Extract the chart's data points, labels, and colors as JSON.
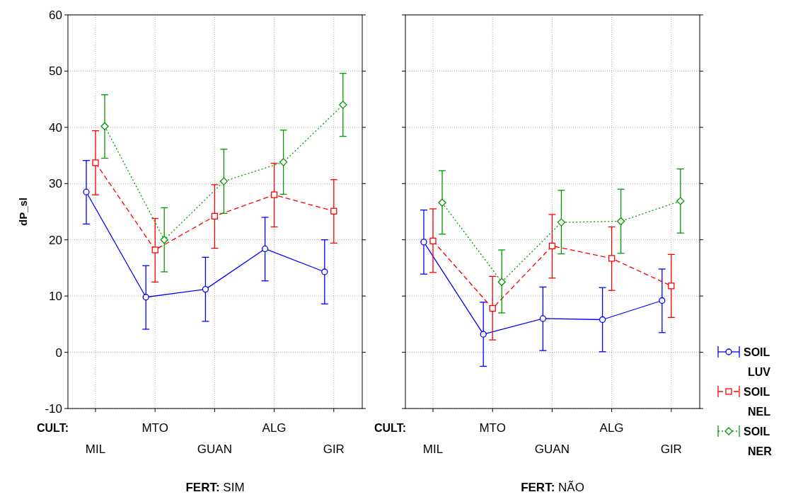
{
  "chart_data": [
    {
      "type": "line",
      "xlabel": "FERT: SIM",
      "ylabel": "dP_sl",
      "annotations": [
        "CULT:"
      ],
      "categories": [
        "MIL",
        "MTO",
        "GUAN",
        "ALG",
        "GIR"
      ],
      "ylim": [
        -10,
        60
      ],
      "yticks": [
        -10,
        0,
        10,
        20,
        30,
        40,
        50,
        60
      ],
      "grid": true,
      "series": [
        {
          "color": "#0000ff",
          "marker": "circle",
          "line_style": "solid",
          "values": [
            28.5,
            9.8,
            11.2,
            18.4,
            14.3
          ],
          "errors": [
            [
              22.8,
              34.1
            ],
            [
              4.1,
              15.4
            ],
            [
              5.5,
              16.9
            ],
            [
              12.7,
              24.0
            ],
            [
              8.6,
              20.0
            ]
          ]
        },
        {
          "color": "#ff0000",
          "marker": "square",
          "line_style": "dashed",
          "values": [
            33.7,
            18.2,
            24.2,
            28.0,
            25.1
          ],
          "errors": [
            [
              28.0,
              39.4
            ],
            [
              12.5,
              23.8
            ],
            [
              18.5,
              29.8
            ],
            [
              22.3,
              33.6
            ],
            [
              19.4,
              30.7
            ]
          ]
        },
        {
          "color": "#009900",
          "marker": "diamond",
          "line_style": "dotted",
          "values": [
            40.2,
            20.0,
            30.4,
            33.8,
            44.0
          ],
          "errors": [
            [
              34.5,
              45.8
            ],
            [
              14.3,
              25.7
            ],
            [
              24.7,
              36.1
            ],
            [
              28.1,
              39.5
            ],
            [
              38.4,
              49.6
            ]
          ]
        }
      ]
    },
    {
      "type": "line",
      "xlabel": "FERT: NÃO",
      "annotations": [
        "CULT:"
      ],
      "categories": [
        "MIL",
        "MTO",
        "GUAN",
        "ALG",
        "GIR"
      ],
      "ylim": [
        -10,
        60
      ],
      "yticks": [
        -10,
        0,
        10,
        20,
        30,
        40,
        50,
        60
      ],
      "tick_labels": "x",
      "grid": true,
      "legend": "right",
      "series": [
        {
          "name": "SOIL LUV",
          "color": "#0000ff",
          "marker": "circle",
          "line_style": "solid",
          "values": [
            19.6,
            3.2,
            6.0,
            5.8,
            9.2
          ],
          "errors": [
            [
              13.9,
              25.3
            ],
            [
              -2.5,
              8.9
            ],
            [
              0.3,
              11.6
            ],
            [
              0.1,
              11.5
            ],
            [
              3.5,
              14.8
            ]
          ]
        },
        {
          "name": "SOIL NEL",
          "color": "#ff0000",
          "marker": "square",
          "line_style": "dashed",
          "values": [
            19.8,
            7.8,
            18.9,
            16.7,
            11.8
          ],
          "errors": [
            [
              14.2,
              25.5
            ],
            [
              2.2,
              13.5
            ],
            [
              13.2,
              24.5
            ],
            [
              11.0,
              22.3
            ],
            [
              6.2,
              17.4
            ]
          ]
        },
        {
          "name": "SOIL NER",
          "color": "#009900",
          "marker": "diamond",
          "line_style": "dotted",
          "values": [
            26.6,
            12.5,
            23.1,
            23.3,
            26.9
          ],
          "errors": [
            [
              21.0,
              32.3
            ],
            [
              7.0,
              18.2
            ],
            [
              17.5,
              28.8
            ],
            [
              17.6,
              29.0
            ],
            [
              21.2,
              32.6
            ]
          ]
        }
      ]
    }
  ]
}
